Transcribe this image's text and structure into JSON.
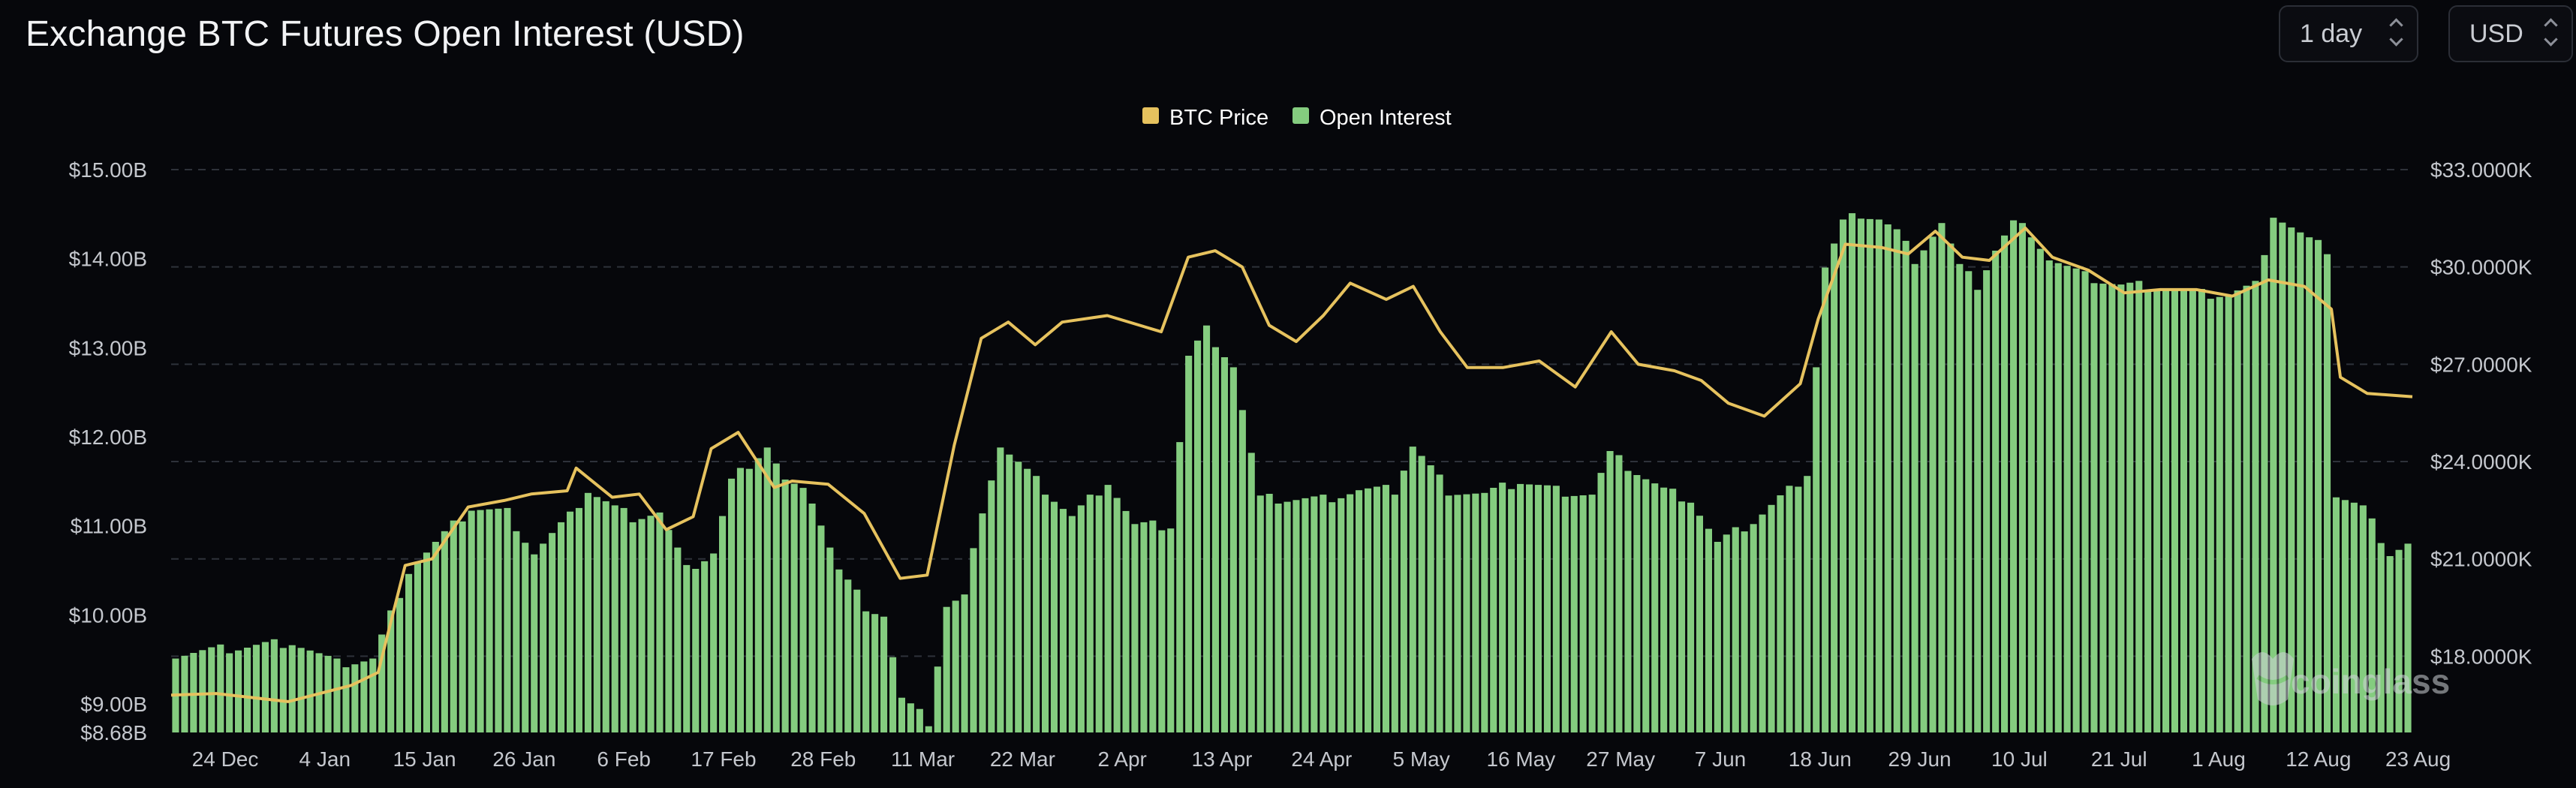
{
  "header": {
    "title": "Exchange BTC Futures Open Interest (USD)",
    "period_select": {
      "value": "1 day"
    },
    "currency_select": {
      "value": "USD"
    }
  },
  "watermark": "coinglass",
  "colors": {
    "open_interest": "#84cc7f",
    "btc_price": "#e6c25e",
    "grid": "#2e323a",
    "background": "#06070b"
  },
  "chart_data": {
    "type": "bar",
    "legend": {
      "position": "top-center",
      "entries": [
        "BTC Price",
        "Open Interest"
      ]
    },
    "grid": true,
    "x_tick_labels": [
      "24 Dec",
      "4 Jan",
      "15 Jan",
      "26 Jan",
      "6 Feb",
      "17 Feb",
      "28 Feb",
      "11 Mar",
      "22 Mar",
      "2 Apr",
      "13 Apr",
      "24 Apr",
      "5 May",
      "16 May",
      "27 May",
      "7 Jun",
      "18 Jun",
      "29 Jun",
      "10 Jul",
      "21 Jul",
      "1 Aug",
      "12 Aug",
      "23 Aug"
    ],
    "y_left": {
      "tick_labels": [
        "$8.68B",
        "$9.00B",
        "$10.00B",
        "$11.00B",
        "$12.00B",
        "$13.00B",
        "$14.00B",
        "$15.00B"
      ],
      "range": [
        8.68,
        15.0
      ],
      "unit": "B"
    },
    "y_right": {
      "tick_labels": [
        "$18.0000K",
        "$21.0000K",
        "$24.0000K",
        "$27.0000K",
        "$30.0000K",
        "$33.0000K"
      ],
      "range": [
        15.65,
        33.0
      ],
      "unit": "K"
    },
    "x_range": [
      "2022-12-19",
      "2023-08-25"
    ],
    "series": [
      {
        "name": "Open Interest",
        "type": "bar",
        "axis": "left",
        "points": [
          [
            "2022-12-19",
            9.55
          ],
          [
            "2023-01-01",
            9.7
          ],
          [
            "2023-01-06",
            9.45
          ],
          [
            "2023-01-10",
            9.5
          ],
          [
            "2023-01-14",
            10.5
          ],
          [
            "2023-01-18",
            10.9
          ],
          [
            "2023-01-21",
            11.2
          ],
          [
            "2023-01-25",
            11.15
          ],
          [
            "2023-01-28",
            10.7
          ],
          [
            "2023-02-01",
            11.1
          ],
          [
            "2023-02-03",
            11.4
          ],
          [
            "2023-02-06",
            11.2
          ],
          [
            "2023-02-08",
            11.1
          ],
          [
            "2023-02-11",
            11.15
          ],
          [
            "2023-02-14",
            10.5
          ],
          [
            "2023-02-17",
            10.7
          ],
          [
            "2023-02-19",
            11.5
          ],
          [
            "2023-02-21",
            11.7
          ],
          [
            "2023-02-23",
            11.9
          ],
          [
            "2023-02-25",
            11.5
          ],
          [
            "2023-02-28",
            11.3
          ],
          [
            "2023-03-03",
            10.5
          ],
          [
            "2023-03-06",
            10.1
          ],
          [
            "2023-03-08",
            10.0
          ],
          [
            "2023-03-10",
            9.05
          ],
          [
            "2023-03-13",
            8.8
          ],
          [
            "2023-03-15",
            10.1
          ],
          [
            "2023-03-17",
            10.2
          ],
          [
            "2023-03-19",
            11.2
          ],
          [
            "2023-03-21",
            11.9
          ],
          [
            "2023-03-25",
            11.5
          ],
          [
            "2023-03-29",
            11.1
          ],
          [
            "2023-04-02",
            11.5
          ],
          [
            "2023-04-05",
            11.0
          ],
          [
            "2023-04-09",
            11.0
          ],
          [
            "2023-04-11",
            12.9
          ],
          [
            "2023-04-13",
            13.2
          ],
          [
            "2023-04-16",
            12.8
          ],
          [
            "2023-04-19",
            11.3
          ],
          [
            "2023-04-23",
            11.3
          ],
          [
            "2023-04-26",
            11.3
          ],
          [
            "2023-04-30",
            11.4
          ],
          [
            "2023-05-04",
            11.4
          ],
          [
            "2023-05-06",
            11.9
          ],
          [
            "2023-05-10",
            11.4
          ],
          [
            "2023-05-14",
            11.35
          ],
          [
            "2023-05-18",
            11.5
          ],
          [
            "2023-05-22",
            11.4
          ],
          [
            "2023-05-26",
            11.35
          ],
          [
            "2023-05-28",
            11.8
          ],
          [
            "2023-05-31",
            11.6
          ],
          [
            "2023-06-03",
            11.4
          ],
          [
            "2023-06-06",
            11.3
          ],
          [
            "2023-06-09",
            10.8
          ],
          [
            "2023-06-13",
            11.05
          ],
          [
            "2023-06-17",
            11.4
          ],
          [
            "2023-06-19",
            11.6
          ],
          [
            "2023-06-20",
            12.8
          ],
          [
            "2023-06-21",
            13.9
          ],
          [
            "2023-06-23",
            14.4
          ],
          [
            "2023-06-25",
            14.5
          ],
          [
            "2023-06-27",
            14.45
          ],
          [
            "2023-06-29",
            14.3
          ],
          [
            "2023-07-01",
            14.0
          ],
          [
            "2023-07-04",
            14.4
          ],
          [
            "2023-07-06",
            13.9
          ],
          [
            "2023-07-08",
            13.7
          ],
          [
            "2023-07-10",
            14.1
          ],
          [
            "2023-07-12",
            14.4
          ],
          [
            "2023-07-14",
            14.3
          ],
          [
            "2023-07-16",
            14.0
          ],
          [
            "2023-07-20",
            13.8
          ],
          [
            "2023-07-24",
            13.7
          ],
          [
            "2023-07-28",
            13.7
          ],
          [
            "2023-08-01",
            13.6
          ],
          [
            "2023-08-05",
            13.6
          ],
          [
            "2023-08-08",
            13.7
          ],
          [
            "2023-08-10",
            14.5
          ],
          [
            "2023-08-14",
            14.2
          ],
          [
            "2023-08-16",
            14.1
          ],
          [
            "2023-08-17",
            11.35
          ],
          [
            "2023-08-20",
            11.2
          ],
          [
            "2023-08-23",
            10.7
          ],
          [
            "2023-08-25",
            10.8
          ]
        ]
      },
      {
        "name": "BTC Price",
        "type": "line",
        "axis": "right",
        "points": [
          [
            "2022-12-19",
            16.8
          ],
          [
            "2022-12-24",
            16.85
          ],
          [
            "2023-01-01",
            16.6
          ],
          [
            "2023-01-08",
            17.1
          ],
          [
            "2023-01-11",
            17.5
          ],
          [
            "2023-01-14",
            20.8
          ],
          [
            "2023-01-17",
            21.0
          ],
          [
            "2023-01-21",
            22.6
          ],
          [
            "2023-01-25",
            22.8
          ],
          [
            "2023-01-28",
            23.0
          ],
          [
            "2023-02-01",
            23.1
          ],
          [
            "2023-02-02",
            23.8
          ],
          [
            "2023-02-06",
            22.9
          ],
          [
            "2023-02-09",
            23.0
          ],
          [
            "2023-02-12",
            21.9
          ],
          [
            "2023-02-15",
            22.3
          ],
          [
            "2023-02-17",
            24.4
          ],
          [
            "2023-02-20",
            24.9
          ],
          [
            "2023-02-24",
            23.2
          ],
          [
            "2023-02-26",
            23.4
          ],
          [
            "2023-03-02",
            23.3
          ],
          [
            "2023-03-06",
            22.4
          ],
          [
            "2023-03-10",
            20.4
          ],
          [
            "2023-03-13",
            20.5
          ],
          [
            "2023-03-16",
            24.5
          ],
          [
            "2023-03-19",
            27.8
          ],
          [
            "2023-03-22",
            28.3
          ],
          [
            "2023-03-25",
            27.6
          ],
          [
            "2023-03-28",
            28.3
          ],
          [
            "2023-04-02",
            28.5
          ],
          [
            "2023-04-08",
            28.0
          ],
          [
            "2023-04-11",
            30.3
          ],
          [
            "2023-04-14",
            30.5
          ],
          [
            "2023-04-17",
            30.0
          ],
          [
            "2023-04-20",
            28.2
          ],
          [
            "2023-04-23",
            27.7
          ],
          [
            "2023-04-26",
            28.5
          ],
          [
            "2023-04-29",
            29.5
          ],
          [
            "2023-05-03",
            29.0
          ],
          [
            "2023-05-06",
            29.4
          ],
          [
            "2023-05-09",
            28.0
          ],
          [
            "2023-05-12",
            26.9
          ],
          [
            "2023-05-16",
            26.9
          ],
          [
            "2023-05-20",
            27.1
          ],
          [
            "2023-05-24",
            26.3
          ],
          [
            "2023-05-28",
            28.0
          ],
          [
            "2023-05-31",
            27.0
          ],
          [
            "2023-06-04",
            26.8
          ],
          [
            "2023-06-07",
            26.5
          ],
          [
            "2023-06-10",
            25.8
          ],
          [
            "2023-06-14",
            25.4
          ],
          [
            "2023-06-18",
            26.4
          ],
          [
            "2023-06-20",
            28.4
          ],
          [
            "2023-06-23",
            30.7
          ],
          [
            "2023-06-27",
            30.6
          ],
          [
            "2023-06-30",
            30.4
          ],
          [
            "2023-07-03",
            31.1
          ],
          [
            "2023-07-06",
            30.3
          ],
          [
            "2023-07-09",
            30.2
          ],
          [
            "2023-07-13",
            31.2
          ],
          [
            "2023-07-16",
            30.3
          ],
          [
            "2023-07-20",
            29.9
          ],
          [
            "2023-07-24",
            29.2
          ],
          [
            "2023-07-28",
            29.3
          ],
          [
            "2023-08-01",
            29.3
          ],
          [
            "2023-08-05",
            29.1
          ],
          [
            "2023-08-09",
            29.6
          ],
          [
            "2023-08-13",
            29.4
          ],
          [
            "2023-08-16",
            28.7
          ],
          [
            "2023-08-17",
            26.6
          ],
          [
            "2023-08-20",
            26.1
          ],
          [
            "2023-08-25",
            26.0
          ]
        ]
      }
    ]
  }
}
